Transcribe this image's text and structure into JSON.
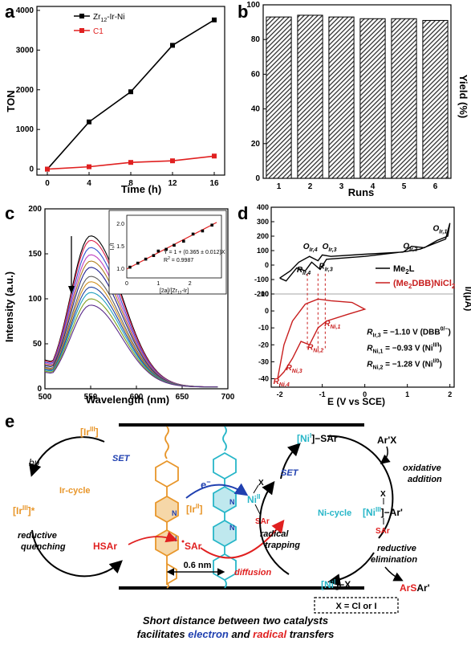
{
  "panel_labels": {
    "a": "a",
    "b": "b",
    "c": "c",
    "d": "d",
    "e": "e"
  },
  "chart_data": [
    {
      "panel": "a",
      "type": "line",
      "xlabel": "Time (h)",
      "ylabel": "TON",
      "xlim": [
        -1,
        17
      ],
      "ylim": [
        -150,
        4100
      ],
      "xticks": [
        0,
        4,
        8,
        12,
        16
      ],
      "yticks": [
        0,
        1000,
        2000,
        3000,
        4000
      ],
      "grid": false,
      "legend_position": "top-left",
      "series": [
        {
          "name": "Zr",
          "name_sub": "12",
          "name_rest": "-Ir-Ni",
          "color": "#000000",
          "marker": "square",
          "x": [
            0,
            4,
            8,
            12,
            16
          ],
          "y": [
            0,
            1190,
            1950,
            3120,
            3760
          ]
        },
        {
          "name": "C1",
          "color": "#e02020",
          "marker": "square",
          "x": [
            0,
            4,
            8,
            12,
            16
          ],
          "y": [
            0,
            60,
            170,
            210,
            330
          ]
        }
      ]
    },
    {
      "panel": "b",
      "type": "bar",
      "xlabel": "Runs",
      "ylabel": "Yield (%)",
      "categories": [
        "1",
        "2",
        "3",
        "4",
        "5",
        "6"
      ],
      "values": [
        93,
        94,
        93,
        92,
        92,
        91
      ],
      "ylim": [
        0,
        100
      ],
      "yticks": [
        0,
        20,
        40,
        60,
        80,
        100
      ],
      "bar_pattern": "diagonal-hatch"
    },
    {
      "panel": "c",
      "type": "line",
      "xlabel": "Wavelength (nm)",
      "ylabel": "Intensity (a.u.)",
      "xlim": [
        500,
        700
      ],
      "ylim": [
        0,
        200
      ],
      "xticks": [
        500,
        550,
        600,
        650,
        700
      ],
      "yticks": [
        0,
        50,
        100,
        150,
        200
      ],
      "peak_wavelength": 550,
      "peak_intensities": [
        168,
        163,
        155,
        147,
        140,
        133,
        123,
        117,
        111,
        105,
        98,
        91
      ],
      "series_colors": [
        "#000000",
        "#e0204a",
        "#3050d0",
        "#c040c0",
        "#b08020",
        "#202090",
        "#606060",
        "#d09020",
        "#2040a0",
        "#20a0c0",
        "#80a020",
        "#5a2a8a"
      ],
      "arrow": "decreasing",
      "inset": {
        "type": "scatter",
        "xlabel": "[2a]/[Zr",
        "xlabel_sub": "12",
        "xlabel_rest": "-Ir]",
        "ylabel": "I₀/I",
        "xlim": [
          0,
          3
        ],
        "ylim": [
          0.8,
          2.2
        ],
        "xticks": [
          0,
          1,
          2
        ],
        "yticks": [
          1.0,
          1.5,
          2.0
        ],
        "x": [
          0.1,
          0.35,
          0.6,
          0.85,
          1.0,
          1.25,
          1.5,
          1.8,
          2.1,
          2.4,
          2.7
        ],
        "y": [
          1.04,
          1.13,
          1.22,
          1.3,
          1.4,
          1.44,
          1.53,
          1.62,
          1.78,
          1.85,
          1.98
        ],
        "fit_line_color": "#e02020",
        "equation": "Y = 1 + (0.365 ± 0.012)X",
        "r2_text": "R",
        "r2_value": " = 0.9987"
      }
    },
    {
      "panel": "d",
      "type": "line",
      "xlabel": "E (V vs SCE)",
      "ylabel": "I/(μA)",
      "xlim": [
        -2.2,
        2.1
      ],
      "xticks": [
        -2,
        -1,
        0,
        1,
        2
      ],
      "upper_ylim": [
        -200,
        400
      ],
      "upper_yticks": [
        -200,
        -100,
        0,
        100,
        200,
        300,
        400
      ],
      "lower_ylim": [
        -45,
        10
      ],
      "lower_yticks": [
        -40,
        -30,
        -20,
        -10,
        0,
        10
      ],
      "legend_position": "right",
      "series": [
        {
          "name": "Me2L",
          "label_main": "Me",
          "label_sub": "2",
          "label_rest": "L",
          "color": "#000000"
        },
        {
          "name": "(Me2DBB)NiCl2",
          "label_main": "(Me",
          "label_sub": "2",
          "label_rest": "DBB)NiCl",
          "label_sub2": "2",
          "color": "#c81e1e"
        }
      ],
      "peak_labels": {
        "oxidation": [
          {
            "main": "O",
            "sub": "Ir,4"
          },
          {
            "main": "O",
            "sub": "Ir,3"
          },
          {
            "main": "O",
            "sub": "Ir,2"
          },
          {
            "main": "O",
            "sub": "Ir,1"
          }
        ],
        "reduction_ir": [
          {
            "main": "R",
            "sub": "Ir,4"
          },
          {
            "main": "R",
            "sub": "Ir,3"
          }
        ],
        "reduction_ni": [
          {
            "main": "R",
            "sub": "Ni,1"
          },
          {
            "main": "R",
            "sub": "Ni,2"
          },
          {
            "main": "R",
            "sub": "Ni,3"
          },
          {
            "main": "R",
            "sub": "Ni,4"
          }
        ]
      },
      "annotations": [
        {
          "main": "R",
          "sub": "Ir,3",
          "text": " = −1.10 V (DBB",
          "sup": "0/−",
          "end": ")"
        },
        {
          "main": "R",
          "sub": "Ni,1",
          "text": " = −0.93 V (Ni",
          "sup": "II/I",
          "end": ")"
        },
        {
          "main": "R",
          "sub": "Ni,2",
          "text": " = −1.28 V (Ni",
          "sup": "I/0",
          "end": ")"
        }
      ]
    }
  ],
  "diagram": {
    "ir3": "[Ir",
    "ir3_sup": "III",
    "ir3_end": "]",
    "ir3star_sup": "III",
    "ir3star_end": "]*",
    "ir2_sup": "II",
    "hv": "hυ",
    "set_left": "SET",
    "set_right": "SET",
    "electron": "e",
    "electron_sup": "−",
    "ir_cycle": "Ir-cycle",
    "ni_cycle": "Ni-cycle",
    "reductive_quenching": [
      "reductive",
      "quenching"
    ],
    "hsar": "HSAr",
    "sar_radical": "SAr",
    "distance": "0.6 nm",
    "radical_trapping": [
      "radical",
      "trapping"
    ],
    "diffusion": "diffusion",
    "ni2_x": "X",
    "ni2_sar": "SAr",
    "ni2_sup": "II",
    "ni_top": "[Ni",
    "ni_top_sup": "I",
    "ni_top_end": "]−SAr",
    "arx": "Ar'X",
    "oxidative_addition": [
      "oxidative",
      "addition"
    ],
    "ni3_x": "X",
    "ni3": "[Ni",
    "ni3_sup": "III",
    "ni3_end": "]−Ar'",
    "ni3_sar": "SAr",
    "reductive_elimination": [
      "reductive",
      "elimination"
    ],
    "arsar_1": "Ar",
    "arsar_2": "S",
    "arsar_3": "Ar'",
    "ni_bottom": "[Ni",
    "ni_bottom_sup": "I",
    "ni_bottom_end": "]−X",
    "x_box": "X = Cl or I",
    "caption_line1": "Short distance between two catalysts",
    "caption_line2_a": "facilitates ",
    "caption_line2_b": "electron",
    "caption_line2_c": " and ",
    "caption_line2_d": "radical",
    "caption_line2_e": " transfers",
    "colors": {
      "orange": "#e8962a",
      "cyan": "#27b6c8",
      "red": "#e02020",
      "blue": "#2040b0"
    }
  }
}
